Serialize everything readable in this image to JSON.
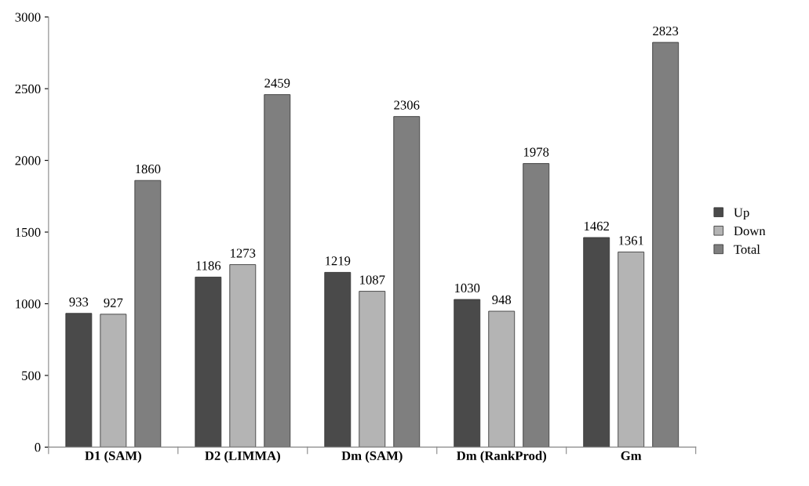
{
  "chart_data": {
    "type": "bar",
    "categories": [
      "D1 (SAM)",
      "D2 (LIMMA)",
      "Dm (SAM)",
      "Dm (RankProd)",
      "Gm"
    ],
    "series": [
      {
        "name": "Up",
        "color": "#4a4a4a",
        "values": [
          933,
          1186,
          1219,
          1030,
          1462
        ]
      },
      {
        "name": "Down",
        "color": "#b4b4b4",
        "values": [
          927,
          1273,
          1087,
          948,
          1361
        ]
      },
      {
        "name": "Total",
        "color": "#7f7f7f",
        "values": [
          1860,
          2459,
          2306,
          1978,
          2823
        ]
      }
    ],
    "ylim": [
      0,
      3000
    ],
    "yticks": [
      0,
      500,
      1000,
      1500,
      2000,
      2500,
      3000
    ],
    "data_labels": true,
    "grid": false,
    "legend": "right"
  }
}
